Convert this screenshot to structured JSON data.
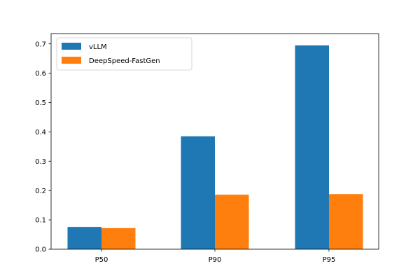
{
  "chart_data": {
    "type": "bar",
    "title": "",
    "xlabel": "",
    "ylabel": "",
    "categories": [
      "P50",
      "P90",
      "P95"
    ],
    "series": [
      {
        "name": "vLLM",
        "color": "#1f77b4",
        "values": [
          0.076,
          0.385,
          0.695
        ]
      },
      {
        "name": "DeepSpeed-FastGen",
        "color": "#ff7f0e",
        "values": [
          0.072,
          0.186,
          0.188
        ]
      }
    ],
    "ylim": [
      0,
      0.735
    ],
    "yticks": [
      0.0,
      0.1,
      0.2,
      0.3,
      0.4,
      0.5,
      0.6,
      0.7
    ],
    "ytick_labels": [
      "0.0",
      "0.1",
      "0.2",
      "0.3",
      "0.4",
      "0.5",
      "0.6",
      "0.7"
    ],
    "grid": false,
    "legend_position": "top-left"
  }
}
